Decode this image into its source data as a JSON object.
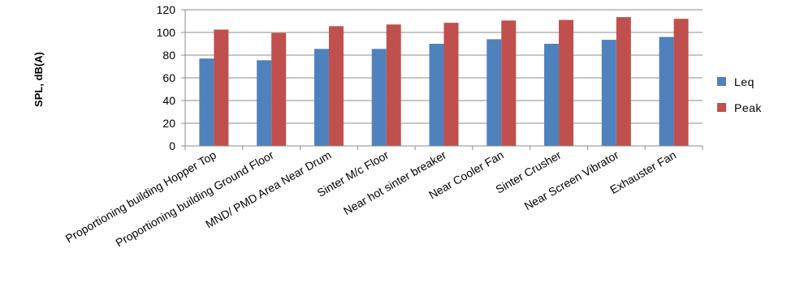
{
  "chart_data": {
    "type": "bar",
    "title": "",
    "xlabel": "",
    "ylabel": "SPL, dB(A)",
    "ylim": [
      0,
      120
    ],
    "yticks": [
      0,
      20,
      40,
      60,
      80,
      100,
      120
    ],
    "grid": true,
    "legend_position": "right",
    "categories": [
      "Proportioning building Hopper Top",
      "Proportioning building Ground Floor",
      "MND/ PMD Area Near Drum",
      "Sinter M/c Floor",
      "Near hot sinter breaker",
      "Near Cooler Fan",
      "Sinter Crusher",
      "Near Screen Vibrator",
      "Exhauster Fan"
    ],
    "series": [
      {
        "name": "Leq",
        "color": "#4F81BD",
        "values": [
          77,
          75.5,
          85.5,
          85.5,
          90,
          94,
          90,
          93.5,
          96
        ]
      },
      {
        "name": "Peak",
        "color": "#C0504D",
        "values": [
          102.5,
          99.5,
          105.5,
          107,
          108.5,
          110.5,
          111,
          113.5,
          112
        ]
      }
    ]
  }
}
